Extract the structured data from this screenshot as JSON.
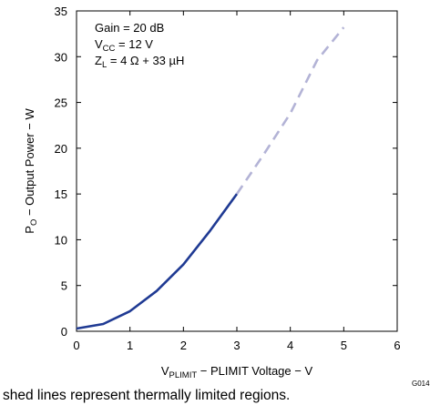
{
  "chart_data": {
    "type": "line",
    "xlabel": {
      "prefix": "V",
      "subscript": "PLIMIT",
      "suffix": " − PLIMIT Voltage − V"
    },
    "ylabel": {
      "prefix": "P",
      "subscript": "O",
      "suffix": " − Output Power − W"
    },
    "xlim": [
      0,
      6
    ],
    "ylim": [
      0,
      35
    ],
    "xticks": [
      "0",
      "1",
      "2",
      "3",
      "4",
      "5",
      "6"
    ],
    "yticks": [
      "0",
      "5",
      "10",
      "15",
      "20",
      "25",
      "30",
      "35"
    ],
    "grid": false,
    "annotations": [
      {
        "text": "Gain = 20 dB"
      },
      {
        "prefix": "V",
        "subscript": "CC",
        "suffix": " = 12 V"
      },
      {
        "prefix": "Z",
        "subscript": "L",
        "suffix": " = 4 Ω + 33 µH"
      }
    ],
    "series": [
      {
        "style": "solid",
        "color": "#1f3a93",
        "x": [
          0,
          0.5,
          1.0,
          1.5,
          2.0,
          2.5,
          3.0
        ],
        "y": [
          0.3,
          0.8,
          2.2,
          4.4,
          7.3,
          11.0,
          15.0
        ]
      },
      {
        "style": "dashed",
        "color": "#b3b3d6",
        "x": [
          3.0,
          3.5,
          4.0,
          4.5,
          5.0
        ],
        "y": [
          15.0,
          19.3,
          23.8,
          29.6,
          33.2
        ]
      }
    ]
  },
  "caption": "shed lines represent thermally limited regions.",
  "figure_id": "G014"
}
